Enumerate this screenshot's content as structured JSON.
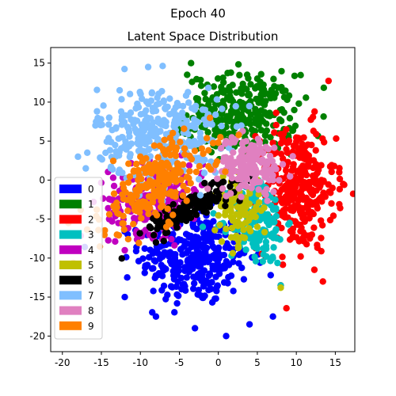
{
  "figure": {
    "suptitle": "Epoch 40",
    "title": "Latent Space Distribution"
  },
  "chart_data": {
    "type": "scatter",
    "title": "Latent Space Distribution",
    "xlabel": "",
    "ylabel": "",
    "xlim": [
      -21.5,
      17.5
    ],
    "ylim": [
      -22,
      17
    ],
    "xticks": [
      -20,
      -15,
      -10,
      -5,
      0,
      5,
      10,
      15
    ],
    "yticks": [
      -20,
      -15,
      -10,
      -5,
      0,
      5,
      10,
      15
    ],
    "grid": false,
    "legend_position": "lower-left",
    "series": [
      {
        "name": "0",
        "color": "#0000ff",
        "center": [
          -3,
          -10
        ],
        "spread": [
          3.5,
          3.0
        ],
        "count": 320,
        "outliers": [
          [
            -8,
            -17.5
          ],
          [
            -3,
            -19
          ],
          [
            1,
            -20
          ],
          [
            7,
            -17.5
          ],
          [
            4,
            -18.5
          ],
          [
            -12,
            -15
          ]
        ]
      },
      {
        "name": "1",
        "color": "#008000",
        "center": [
          3,
          8.5
        ],
        "spread": [
          3.5,
          2.5
        ],
        "count": 300,
        "outliers": [
          [
            -3.5,
            15
          ],
          [
            5,
            13
          ],
          [
            -4,
            13.5
          ],
          [
            9,
            5.5
          ]
        ]
      },
      {
        "name": "2",
        "color": "#ff0000",
        "center": [
          10,
          -1
        ],
        "spread": [
          2.5,
          4.0
        ],
        "count": 320,
        "outliers": [
          [
            15.5,
            1
          ],
          [
            16,
            -0.5
          ],
          [
            14.5,
            -3
          ],
          [
            8,
            -13.5
          ],
          [
            12,
            -7
          ]
        ]
      },
      {
        "name": "3",
        "color": "#00c0c0",
        "center": [
          5,
          -5
        ],
        "spread": [
          1.8,
          3.0
        ],
        "count": 160,
        "outliers": [
          [
            7,
            -10
          ],
          [
            8,
            -13.5
          ],
          [
            -2,
            -6
          ]
        ]
      },
      {
        "name": "4",
        "color": "#c000c0",
        "center": [
          -8,
          -2.5
        ],
        "spread": [
          3.0,
          2.2
        ],
        "count": 220,
        "outliers": [
          [
            -14,
            -5
          ],
          [
            -12,
            -9
          ],
          [
            -2,
            2
          ]
        ]
      },
      {
        "name": "5",
        "color": "#c0c000",
        "center": [
          2.5,
          -3.5
        ],
        "spread": [
          1.5,
          2.5
        ],
        "count": 120,
        "outliers": [
          [
            8,
            -13.8
          ],
          [
            5,
            -6
          ]
        ]
      },
      {
        "name": "6",
        "color": "#000000",
        "center": [
          -3.5,
          -3.5
        ],
        "spread": [
          3.0,
          0.9
        ],
        "count": 160,
        "correlated": true,
        "outliers": [
          [
            -8,
            -8
          ],
          [
            0,
            -0.5
          ]
        ]
      },
      {
        "name": "7",
        "color": "#80bfff",
        "center": [
          -7.5,
          6
        ],
        "spread": [
          4.0,
          3.0
        ],
        "count": 320,
        "outliers": [
          [
            -18,
            3
          ],
          [
            -9,
            14.5
          ],
          [
            -14,
            8
          ],
          [
            -17,
            1.5
          ]
        ]
      },
      {
        "name": "8",
        "color": "#e080c0",
        "center": [
          4,
          2
        ],
        "spread": [
          2.0,
          1.8
        ],
        "count": 160,
        "outliers": [
          [
            1,
            5
          ],
          [
            7,
            0
          ]
        ]
      },
      {
        "name": "9",
        "color": "#ff8000",
        "center": [
          -8,
          -0.5
        ],
        "spread": [
          3.5,
          2.5
        ],
        "count": 240,
        "correlated": true,
        "outliers": [
          [
            -13,
            -7
          ],
          [
            -10,
            3
          ]
        ]
      }
    ]
  }
}
